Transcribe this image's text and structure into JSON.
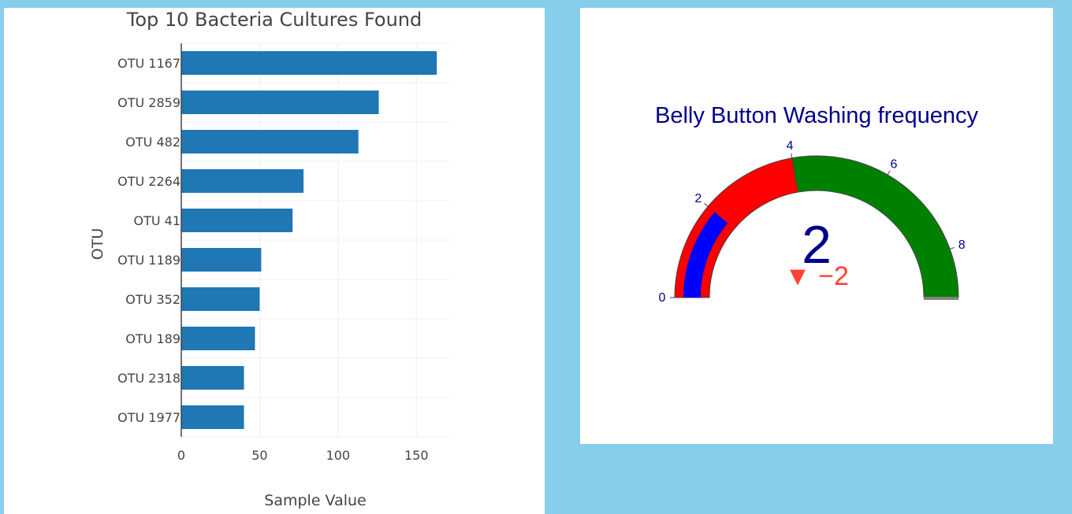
{
  "chart_data": [
    {
      "type": "bar",
      "orientation": "horizontal",
      "title": "Top 10 Bacteria Cultures Found",
      "xlabel": "Sample Value",
      "ylabel": "OTU",
      "categories": [
        "OTU 1167",
        "OTU 2859",
        "OTU 482",
        "OTU 2264",
        "OTU 41",
        "OTU 1189",
        "OTU 352",
        "OTU 189",
        "OTU 2318",
        "OTU 1977"
      ],
      "values": [
        163,
        126,
        113,
        78,
        71,
        51,
        50,
        47,
        40,
        40
      ],
      "xlim": [
        0,
        172
      ],
      "xticks": [
        0,
        50,
        100,
        150
      ],
      "grid": true,
      "color": "#1f77b4"
    },
    {
      "type": "gauge",
      "title": "Belly Button Washing frequency",
      "value": 2,
      "delta": "−2",
      "delta_symbol": "▼",
      "delta_color": "#ff4136",
      "range": [
        0,
        9
      ],
      "ticks": [
        0,
        2,
        4,
        6,
        8
      ],
      "bar_color": "#0000ff",
      "steps": [
        {
          "range": [
            0,
            4
          ],
          "color": "#ff0000"
        },
        {
          "range": [
            4,
            9
          ],
          "color": "#008000"
        }
      ],
      "threshold": {
        "value": 9,
        "color": "#808080"
      }
    }
  ]
}
